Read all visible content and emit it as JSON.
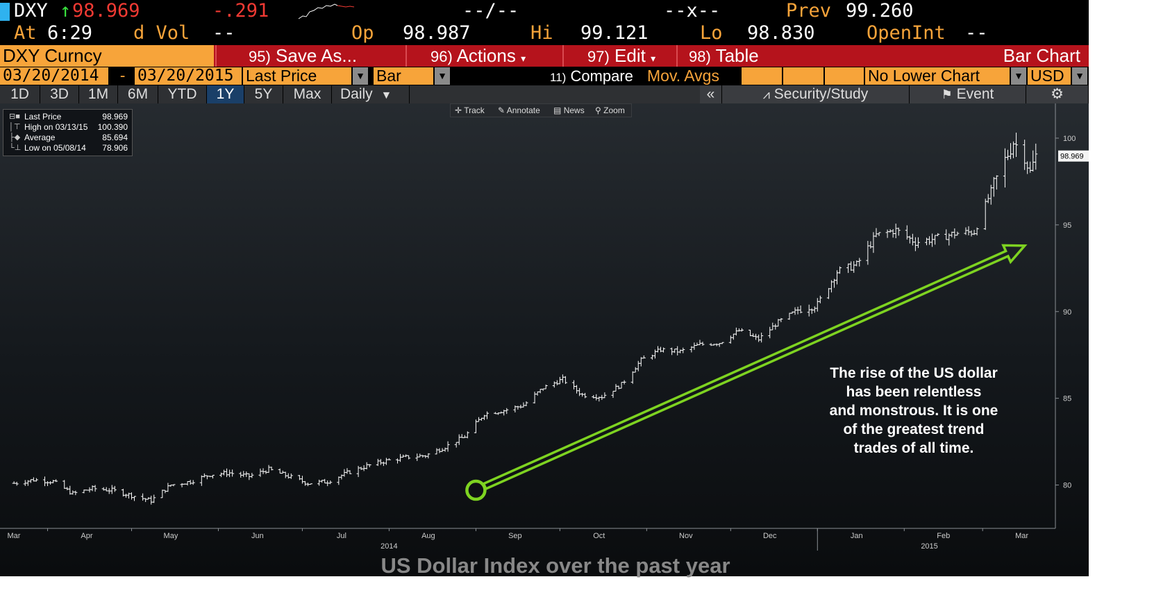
{
  "quote": {
    "ticker": "DXY",
    "arrow": "↑",
    "last": "98.969",
    "change": "-.291",
    "bidask": "--/--",
    "size": "--x--",
    "prev_label": "Prev",
    "prev_value": "99.260",
    "time_label": "At",
    "time_value": "6:29",
    "vol_label": "d Vol",
    "vol_value": "--",
    "open_label": "Op",
    "open_value": "98.987",
    "high_label": "Hi",
    "high_value": "99.121",
    "low_label": "Lo",
    "low_value": "98.830",
    "openint_label": "OpenInt",
    "openint_value": "--"
  },
  "titlebar": {
    "security": "DXY Curncy",
    "save_num": "95)",
    "save_label": "Save As...",
    "actions_num": "96)",
    "actions_label": "Actions",
    "edit_num": "97)",
    "edit_label": "Edit",
    "table_num": "98)",
    "table_label": "Table",
    "chart_title": "Bar Chart"
  },
  "settings": {
    "start_date": "03/20/2014",
    "dash": "-",
    "end_date": "03/20/2015",
    "field": "Last Price",
    "style": "Bar",
    "compare_num": "11)",
    "compare_label": "Compare",
    "mov_avgs": "Mov. Avgs",
    "lower_chart": "No Lower Chart",
    "currency": "USD"
  },
  "periods": {
    "buttons": [
      "1D",
      "3D",
      "1M",
      "6M",
      "YTD",
      "1Y",
      "5Y",
      "Max"
    ],
    "active": "1Y",
    "frequency": "Daily",
    "collapse": "«",
    "security_study": "Security/Study",
    "event": "Event"
  },
  "toolbar": {
    "track": "Track",
    "annotate": "Annotate",
    "news": "News",
    "zoom": "Zoom"
  },
  "legend": {
    "rows": [
      {
        "label": "Last Price",
        "value": "98.969"
      },
      {
        "label": "High on 03/13/15",
        "value": "100.390"
      },
      {
        "label": "Average",
        "value": "85.694"
      },
      {
        "label": "Low on 05/08/14",
        "value": "78.906"
      }
    ]
  },
  "annotation": {
    "lines": [
      "The rise of the US dollar",
      "has been relentless",
      "and monstrous.  It is one",
      "of the greatest trend",
      "trades of all time."
    ]
  },
  "caption": "US Dollar Index over the past year",
  "colors": {
    "bloomberg_orange": "#f7a43a",
    "title_red": "#b5131c",
    "arrow_green": "#7ed321",
    "bars": "#ffffff"
  },
  "chart_data": {
    "type": "bar",
    "style": "ohlc",
    "frequency": "daily",
    "ylim": [
      77.5,
      102
    ],
    "y_ticks": [
      80,
      85,
      90,
      95,
      100
    ],
    "x_ticks": [
      "Mar",
      "Apr",
      "May",
      "Jun",
      "Jul",
      "Aug",
      "Sep",
      "Oct",
      "Nov",
      "Dec",
      "Jan",
      "Feb",
      "Mar"
    ],
    "year_labels": [
      "2014",
      "2015"
    ],
    "last_price_label": "98.969",
    "grid": false,
    "legend_position": "top-left",
    "x": [
      "2014-03-20",
      "2014-03-27",
      "2014-04-03",
      "2014-04-10",
      "2014-04-17",
      "2014-04-24",
      "2014-05-01",
      "2014-05-08",
      "2014-05-15",
      "2014-05-22",
      "2014-05-29",
      "2014-06-05",
      "2014-06-12",
      "2014-06-19",
      "2014-06-26",
      "2014-07-03",
      "2014-07-10",
      "2014-07-17",
      "2014-07-24",
      "2014-07-31",
      "2014-08-07",
      "2014-08-14",
      "2014-08-21",
      "2014-08-28",
      "2014-09-04",
      "2014-09-11",
      "2014-09-18",
      "2014-09-25",
      "2014-10-02",
      "2014-10-09",
      "2014-10-16",
      "2014-10-23",
      "2014-10-30",
      "2014-11-06",
      "2014-11-13",
      "2014-11-20",
      "2014-11-27",
      "2014-12-04",
      "2014-12-11",
      "2014-12-18",
      "2014-12-25",
      "2015-01-01",
      "2015-01-08",
      "2015-01-15",
      "2015-01-22",
      "2015-01-29",
      "2015-02-05",
      "2015-02-12",
      "2015-02-19",
      "2015-02-26",
      "2015-03-05",
      "2015-03-12",
      "2015-03-16",
      "2015-03-18",
      "2015-03-20"
    ],
    "values": [
      80.1,
      80.3,
      80.2,
      79.5,
      79.8,
      79.7,
      79.4,
      79.1,
      80.0,
      80.2,
      80.6,
      80.7,
      80.5,
      80.9,
      80.5,
      80.1,
      80.2,
      80.7,
      81.1,
      81.4,
      81.6,
      81.7,
      82.2,
      82.8,
      84.1,
      84.3,
      84.6,
      85.6,
      86.1,
      85.2,
      85.1,
      85.8,
      87.2,
      87.8,
      87.7,
      88.1,
      88.2,
      88.9,
      88.4,
      89.4,
      90.1,
      90.4,
      92.3,
      92.7,
      94.4,
      94.7,
      94.0,
      94.2,
      94.5,
      94.6,
      97.3,
      99.8,
      99.0,
      98.0,
      98.969
    ],
    "series_note_values": [],
    "legend_entries": [
      {
        "label": "Last Price",
        "value": 98.969
      },
      {
        "label": "High on 03/13/15",
        "value": 100.39
      },
      {
        "label": "Average",
        "value": 85.694
      },
      {
        "label": "Low on 05/08/14",
        "value": 78.906
      }
    ],
    "annotation_arrow": {
      "from": [
        "2014-09-01",
        79.7
      ],
      "to": [
        "2015-03-20",
        93.8
      ]
    }
  }
}
